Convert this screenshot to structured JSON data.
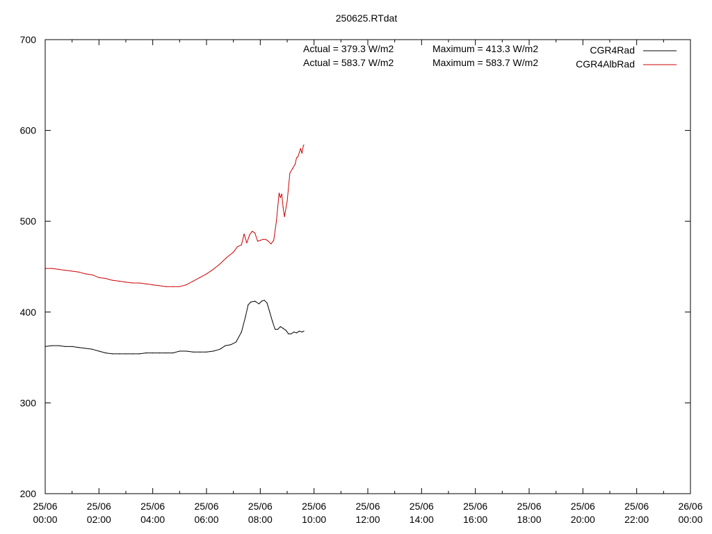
{
  "chart_data": {
    "type": "line",
    "title": "250625.RTdat",
    "xlabel": "",
    "ylabel": "",
    "xlim": [
      0,
      24
    ],
    "ylim": [
      200,
      700
    ],
    "grid": false,
    "legend": "top-right",
    "y_ticks": [
      {
        "value": 200,
        "label": "200"
      },
      {
        "value": 300,
        "label": "300"
      },
      {
        "value": 400,
        "label": "400"
      },
      {
        "value": 500,
        "label": "500"
      },
      {
        "value": 600,
        "label": "600"
      },
      {
        "value": 700,
        "label": "700"
      }
    ],
    "x_ticks": [
      {
        "value": 0,
        "date": "25/06",
        "time": "00:00"
      },
      {
        "value": 2,
        "date": "25/06",
        "time": "02:00"
      },
      {
        "value": 4,
        "date": "25/06",
        "time": "04:00"
      },
      {
        "value": 6,
        "date": "25/06",
        "time": "06:00"
      },
      {
        "value": 8,
        "date": "25/06",
        "time": "08:00"
      },
      {
        "value": 10,
        "date": "25/06",
        "time": "10:00"
      },
      {
        "value": 12,
        "date": "25/06",
        "time": "12:00"
      },
      {
        "value": 14,
        "date": "25/06",
        "time": "14:00"
      },
      {
        "value": 16,
        "date": "25/06",
        "time": "16:00"
      },
      {
        "value": 18,
        "date": "25/06",
        "time": "18:00"
      },
      {
        "value": 20,
        "date": "25/06",
        "time": "20:00"
      },
      {
        "value": 22,
        "date": "25/06",
        "time": "22:00"
      },
      {
        "value": 24,
        "date": "26/06",
        "time": "00:00"
      }
    ],
    "annotations": [
      {
        "actual": "Actual = 379.3 W/m2",
        "maximum": "Maximum = 413.3 W/m2"
      },
      {
        "actual": "Actual = 583.7 W/m2",
        "maximum": "Maximum = 583.7 W/m2"
      }
    ],
    "series": [
      {
        "name": "CGR4Rad",
        "color": "#000000",
        "points": [
          [
            0.0,
            362
          ],
          [
            0.25,
            363
          ],
          [
            0.5,
            363
          ],
          [
            0.75,
            362
          ],
          [
            1.0,
            362
          ],
          [
            1.25,
            361
          ],
          [
            1.5,
            360
          ],
          [
            1.75,
            359
          ],
          [
            2.0,
            357
          ],
          [
            2.25,
            355
          ],
          [
            2.5,
            354
          ],
          [
            2.75,
            354
          ],
          [
            3.0,
            354
          ],
          [
            3.25,
            354
          ],
          [
            3.5,
            354
          ],
          [
            3.75,
            355
          ],
          [
            4.0,
            355
          ],
          [
            4.25,
            355
          ],
          [
            4.5,
            355
          ],
          [
            4.75,
            355
          ],
          [
            5.0,
            357
          ],
          [
            5.25,
            357
          ],
          [
            5.5,
            356
          ],
          [
            5.75,
            356
          ],
          [
            6.0,
            356
          ],
          [
            6.25,
            357
          ],
          [
            6.5,
            359
          ],
          [
            6.7,
            363
          ],
          [
            6.9,
            364
          ],
          [
            7.1,
            367
          ],
          [
            7.3,
            378
          ],
          [
            7.45,
            395
          ],
          [
            7.55,
            408
          ],
          [
            7.65,
            411
          ],
          [
            7.8,
            412
          ],
          [
            7.95,
            409
          ],
          [
            8.05,
            412
          ],
          [
            8.15,
            413
          ],
          [
            8.25,
            410
          ],
          [
            8.35,
            400
          ],
          [
            8.45,
            390
          ],
          [
            8.55,
            381
          ],
          [
            8.65,
            381
          ],
          [
            8.75,
            384
          ],
          [
            8.85,
            382
          ],
          [
            8.95,
            380
          ],
          [
            9.05,
            376
          ],
          [
            9.15,
            376
          ],
          [
            9.25,
            378
          ],
          [
            9.35,
            377
          ],
          [
            9.45,
            379
          ],
          [
            9.55,
            378
          ],
          [
            9.62,
            379
          ]
        ]
      },
      {
        "name": "CGR4AlbRad",
        "color": "#cc0000",
        "points": [
          [
            0.0,
            448
          ],
          [
            0.25,
            448
          ],
          [
            0.5,
            447
          ],
          [
            0.75,
            446
          ],
          [
            1.0,
            445
          ],
          [
            1.25,
            444
          ],
          [
            1.5,
            442
          ],
          [
            1.75,
            441
          ],
          [
            2.0,
            438
          ],
          [
            2.25,
            437
          ],
          [
            2.5,
            435
          ],
          [
            2.75,
            434
          ],
          [
            3.0,
            433
          ],
          [
            3.25,
            432
          ],
          [
            3.5,
            432
          ],
          [
            3.75,
            431
          ],
          [
            4.0,
            430
          ],
          [
            4.25,
            429
          ],
          [
            4.5,
            428
          ],
          [
            4.75,
            428
          ],
          [
            5.0,
            428
          ],
          [
            5.25,
            430
          ],
          [
            5.5,
            434
          ],
          [
            5.75,
            438
          ],
          [
            6.0,
            442
          ],
          [
            6.25,
            447
          ],
          [
            6.5,
            453
          ],
          [
            6.75,
            460
          ],
          [
            7.0,
            466
          ],
          [
            7.15,
            472
          ],
          [
            7.3,
            474
          ],
          [
            7.4,
            486
          ],
          [
            7.5,
            476
          ],
          [
            7.6,
            485
          ],
          [
            7.7,
            489
          ],
          [
            7.8,
            487
          ],
          [
            7.9,
            478
          ],
          [
            8.0,
            479
          ],
          [
            8.1,
            480
          ],
          [
            8.2,
            480
          ],
          [
            8.3,
            478
          ],
          [
            8.4,
            475
          ],
          [
            8.5,
            479
          ],
          [
            8.6,
            500
          ],
          [
            8.7,
            531
          ],
          [
            8.75,
            526
          ],
          [
            8.8,
            530
          ],
          [
            8.85,
            515
          ],
          [
            8.9,
            505
          ],
          [
            9.0,
            522
          ],
          [
            9.1,
            553
          ],
          [
            9.2,
            558
          ],
          [
            9.3,
            563
          ],
          [
            9.35,
            570
          ],
          [
            9.4,
            571
          ],
          [
            9.5,
            580
          ],
          [
            9.55,
            575
          ],
          [
            9.6,
            583
          ],
          [
            9.62,
            584
          ]
        ]
      }
    ]
  }
}
